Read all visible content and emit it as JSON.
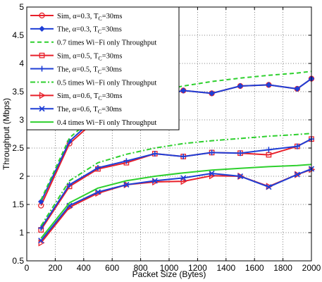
{
  "chart_data": {
    "type": "line",
    "xlabel": "Packet Size (Bytes)",
    "ylabel": "Throughput (Mbps)",
    "xlim": [
      0,
      2000
    ],
    "ylim": [
      0.5,
      5
    ],
    "xticks": [
      "0",
      "200",
      "400",
      "600",
      "800",
      "1000",
      "1200",
      "1400",
      "1600",
      "1800",
      "2000"
    ],
    "yticks": [
      "0.5",
      "1",
      "1.5",
      "2",
      "2.5",
      "3",
      "3.5",
      "4",
      "4.5",
      "5"
    ],
    "grid": true,
    "legend_position": "top-left",
    "series": [
      {
        "name": "Sim, α=0.3, T",
        "sub": "C",
        "suffix": "=30ms",
        "color": "#e8202a",
        "style": "solid",
        "marker": "circle",
        "x": [
          100,
          300,
          500,
          700,
          900,
          1100,
          1300,
          1500,
          1700,
          1900,
          2000
        ],
        "y": [
          1.48,
          2.58,
          3.03,
          3.22,
          3.4,
          3.52,
          3.47,
          3.6,
          3.62,
          3.55,
          3.73
        ]
      },
      {
        "name": "The, α=0.3, T",
        "sub": "C",
        "suffix": "=30ms",
        "color": "#1f3fd6",
        "style": "solid",
        "marker": "diamond",
        "x": [
          100,
          300,
          500,
          700,
          900,
          1100,
          1300,
          1500,
          1700,
          1900,
          2000
        ],
        "y": [
          1.55,
          2.62,
          3.08,
          3.25,
          3.4,
          3.52,
          3.47,
          3.6,
          3.62,
          3.55,
          3.73
        ]
      },
      {
        "name": "0.7 times Wi−Fi only Throughput",
        "color": "#2ed02e",
        "style": "dashed",
        "marker": "none",
        "x": [
          100,
          300,
          500,
          700,
          900,
          1100,
          1300,
          1500,
          1700,
          1900,
          2000
        ],
        "y": [
          1.58,
          2.68,
          3.12,
          3.35,
          3.5,
          3.6,
          3.68,
          3.74,
          3.79,
          3.83,
          3.86
        ]
      },
      {
        "name": "Sim, α=0.5, T",
        "sub": "C",
        "suffix": "=30ms",
        "color": "#e8202a",
        "style": "solid",
        "marker": "square",
        "x": [
          100,
          300,
          500,
          700,
          900,
          1100,
          1300,
          1500,
          1700,
          1900,
          2000
        ],
        "y": [
          1.05,
          1.82,
          2.13,
          2.24,
          2.4,
          2.35,
          2.42,
          2.41,
          2.38,
          2.53,
          2.66
        ]
      },
      {
        "name": "The, α=0.5, T",
        "sub": "C",
        "suffix": "=30ms",
        "color": "#1f3fd6",
        "style": "solid",
        "marker": "plus",
        "x": [
          100,
          300,
          500,
          700,
          900,
          1100,
          1300,
          1500,
          1700,
          1900,
          2000
        ],
        "y": [
          1.08,
          1.85,
          2.15,
          2.27,
          2.4,
          2.35,
          2.42,
          2.41,
          2.47,
          2.53,
          2.66
        ]
      },
      {
        "name": "0.5 times Wi−Fi only Throughput",
        "color": "#2ed02e",
        "style": "dashdot",
        "marker": "none",
        "x": [
          100,
          300,
          500,
          700,
          900,
          1100,
          1300,
          1500,
          1700,
          1900,
          2000
        ],
        "y": [
          1.12,
          1.92,
          2.24,
          2.39,
          2.5,
          2.58,
          2.63,
          2.67,
          2.71,
          2.74,
          2.76
        ]
      },
      {
        "name": "Sim, α=0.6, T",
        "sub": "C",
        "suffix": "=30ms",
        "color": "#e8202a",
        "style": "solid",
        "marker": "triangle-right",
        "x": [
          100,
          300,
          500,
          700,
          900,
          1100,
          1300,
          1500,
          1700,
          1900,
          2000
        ],
        "y": [
          0.82,
          1.45,
          1.7,
          1.85,
          1.9,
          1.91,
          2.01,
          2.0,
          1.82,
          2.03,
          2.12
        ]
      },
      {
        "name": "The, α=0.6, T",
        "sub": "C",
        "suffix": "=30ms",
        "color": "#1f3fd6",
        "style": "solid",
        "marker": "x",
        "x": [
          100,
          300,
          500,
          700,
          900,
          1100,
          1300,
          1500,
          1700,
          1900,
          2000
        ],
        "y": [
          0.86,
          1.48,
          1.72,
          1.85,
          1.92,
          1.97,
          2.05,
          2.0,
          1.81,
          2.03,
          2.13
        ]
      },
      {
        "name": "0.4 times Wi−Fi only Throughput",
        "color": "#2ed02e",
        "style": "solid",
        "marker": "none",
        "x": [
          100,
          300,
          500,
          700,
          900,
          1100,
          1300,
          1500,
          1700,
          1900,
          2000
        ],
        "y": [
          0.9,
          1.53,
          1.79,
          1.92,
          2.0,
          2.06,
          2.11,
          2.14,
          2.17,
          2.19,
          2.21
        ]
      }
    ]
  }
}
